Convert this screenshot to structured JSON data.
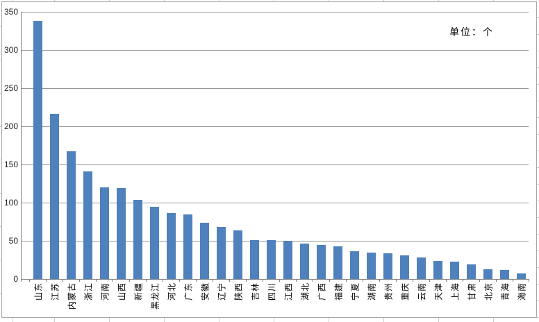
{
  "chart_data": {
    "type": "bar",
    "title": "",
    "unit_label": "单位：个",
    "categories": [
      "山东",
      "江苏",
      "内蒙古",
      "浙江",
      "河南",
      "山西",
      "新疆",
      "黑龙江",
      "河北",
      "广东",
      "安徽",
      "辽宁",
      "陕西",
      "吉林",
      "四川",
      "江西",
      "湖北",
      "广西",
      "福建",
      "宁夏",
      "湖南",
      "贵州",
      "重庆",
      "云南",
      "天津",
      "上海",
      "甘肃",
      "北京",
      "青海",
      "海南"
    ],
    "values": [
      338,
      216,
      167,
      141,
      120,
      119,
      104,
      95,
      86,
      85,
      74,
      68,
      64,
      51,
      51,
      50,
      46,
      45,
      43,
      36,
      35,
      34,
      31,
      28,
      24,
      23,
      19,
      13,
      12,
      7
    ],
    "xlabel": "",
    "ylabel": "",
    "ylim": [
      0,
      350
    ],
    "yticks": [
      0,
      50,
      100,
      150,
      200,
      250,
      300,
      350
    ],
    "grid": "horizontal-major",
    "legend": "none",
    "colors": {
      "bar": "#4F81BD",
      "gridline": "#969696",
      "axis": "#7F7F7F",
      "chart_border": "#A8A8A8",
      "tick_text": "#1F1F1F",
      "category_text": "#000000"
    }
  }
}
